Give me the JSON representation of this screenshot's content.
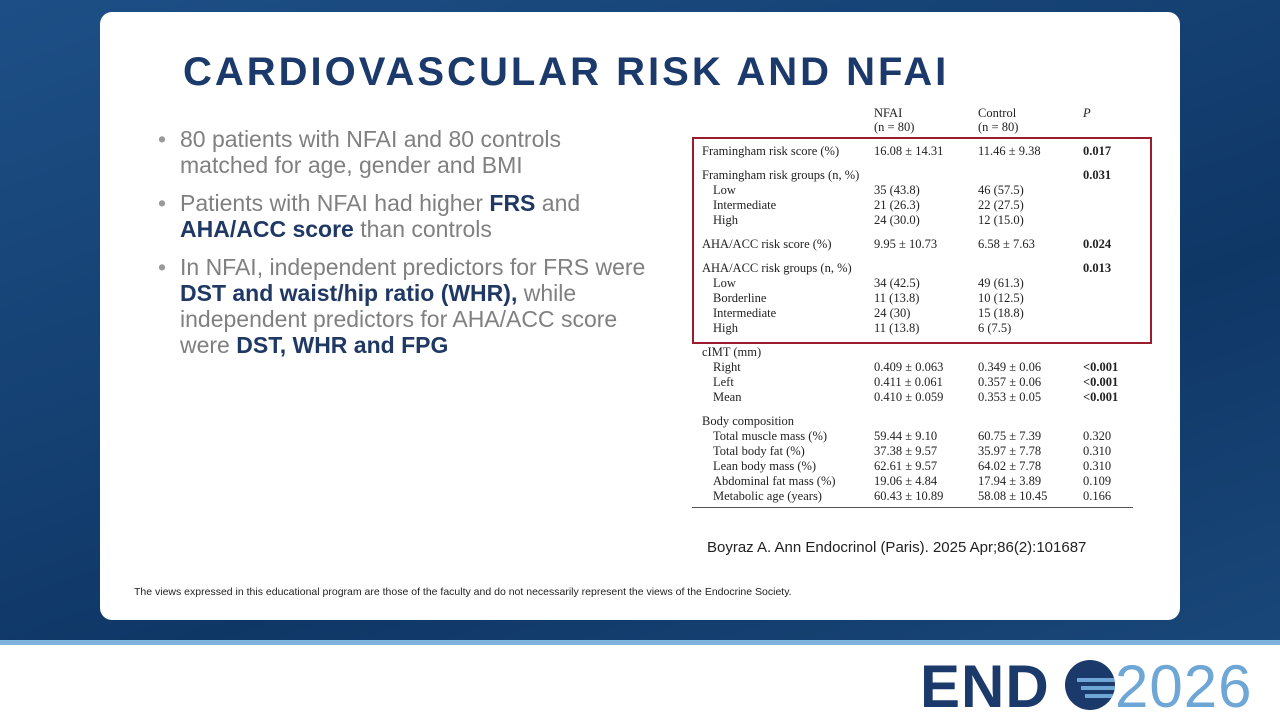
{
  "slide": {
    "title": "CARDIOVASCULAR RISK AND NFAI",
    "bullets": [
      [
        {
          "text": "80 patients with NFAI and 80 controls matched for age, gender and BMI",
          "bold": false
        }
      ],
      [
        {
          "text": "Patients with NFAI had higher ",
          "bold": false
        },
        {
          "text": "FRS",
          "bold": true
        },
        {
          "text": " and ",
          "bold": false
        },
        {
          "text": "AHA/ACC score",
          "bold": true
        },
        {
          "text": " than controls",
          "bold": false
        }
      ],
      [
        {
          "text": "In NFAI, independent predictors for FRS were ",
          "bold": false
        },
        {
          "text": "DST and waist/hip ratio (WHR),",
          "bold": true
        },
        {
          "text": " while independent predictors for AHA/ACC score were ",
          "bold": false
        },
        {
          "text": "DST, WHR and FPG",
          "bold": true
        }
      ]
    ],
    "citation": "Boyraz A. Ann Endocrinol (Paris). 2025 Apr;86(2):101687",
    "disclaimer": "The views expressed in this educational program are those of the faculty and do not necessarily represent the views of the Endocrine Society."
  },
  "table": {
    "header": {
      "nfai": "NFAI",
      "nfai_n": "(n = 80)",
      "control": "Control",
      "control_n": "(n = 80)",
      "p": "P"
    },
    "sections": [
      {
        "label": "Framingham risk score (%)",
        "nfai": "16.08 ± 14.31",
        "control": "11.46 ± 9.38",
        "p": "0.017",
        "rows": []
      },
      {
        "label": "Framingham risk groups (n, %)",
        "p": "0.031",
        "rows": [
          {
            "label": "Low",
            "nfai": "35 (43.8)",
            "control": "46 (57.5)"
          },
          {
            "label": "Intermediate",
            "nfai": "21 (26.3)",
            "control": "22 (27.5)"
          },
          {
            "label": "High",
            "nfai": "24 (30.0)",
            "control": "12 (15.0)"
          }
        ]
      },
      {
        "label": "AHA/ACC risk score (%)",
        "nfai": "9.95 ± 10.73",
        "control": "6.58 ± 7.63",
        "p": "0.024",
        "rows": []
      },
      {
        "label": "AHA/ACC risk groups (n, %)",
        "p": "0.013",
        "rows": [
          {
            "label": "Low",
            "nfai": "34 (42.5)",
            "control": "49 (61.3)"
          },
          {
            "label": "Borderline",
            "nfai": "11 (13.8)",
            "control": "10 (12.5)"
          },
          {
            "label": "Intermediate",
            "nfai": "24 (30)",
            "control": "15 (18.8)"
          },
          {
            "label": "High",
            "nfai": "11 (13.8)",
            "control": "6 (7.5)"
          }
        ]
      },
      {
        "label": "cIMT (mm)",
        "rows": [
          {
            "label": "Right",
            "nfai": "0.409 ± 0.063",
            "control": "0.349 ± 0.06",
            "p": "<0.001"
          },
          {
            "label": "Left",
            "nfai": "0.411 ± 0.061",
            "control": "0.357 ± 0.06",
            "p": "<0.001"
          },
          {
            "label": "Mean",
            "nfai": "0.410 ± 0.059",
            "control": "0.353 ± 0.05",
            "p": "<0.001"
          }
        ]
      },
      {
        "label": "Body composition",
        "rows": [
          {
            "label": "Total muscle mass (%)",
            "nfai": "59.44 ± 9.10",
            "control": "60.75 ± 7.39",
            "p": "0.320"
          },
          {
            "label": "Total body fat (%)",
            "nfai": "37.38 ± 9.57",
            "control": "35.97 ± 7.78",
            "p": "0.310"
          },
          {
            "label": "Lean body mass (%)",
            "nfai": "62.61 ± 9.57",
            "control": "64.02 ± 7.78",
            "p": "0.310"
          },
          {
            "label": "Abdominal fat mass (%)",
            "nfai": "19.06 ± 4.84",
            "control": "17.94 ± 3.89",
            "p": "0.109"
          },
          {
            "label": "Metabolic age (years)",
            "nfai": "60.43 ± 10.89",
            "control": "58.08 ± 10.45",
            "p": "0.166"
          }
        ]
      }
    ]
  },
  "logo": {
    "left": "END",
    "right": "2026"
  }
}
